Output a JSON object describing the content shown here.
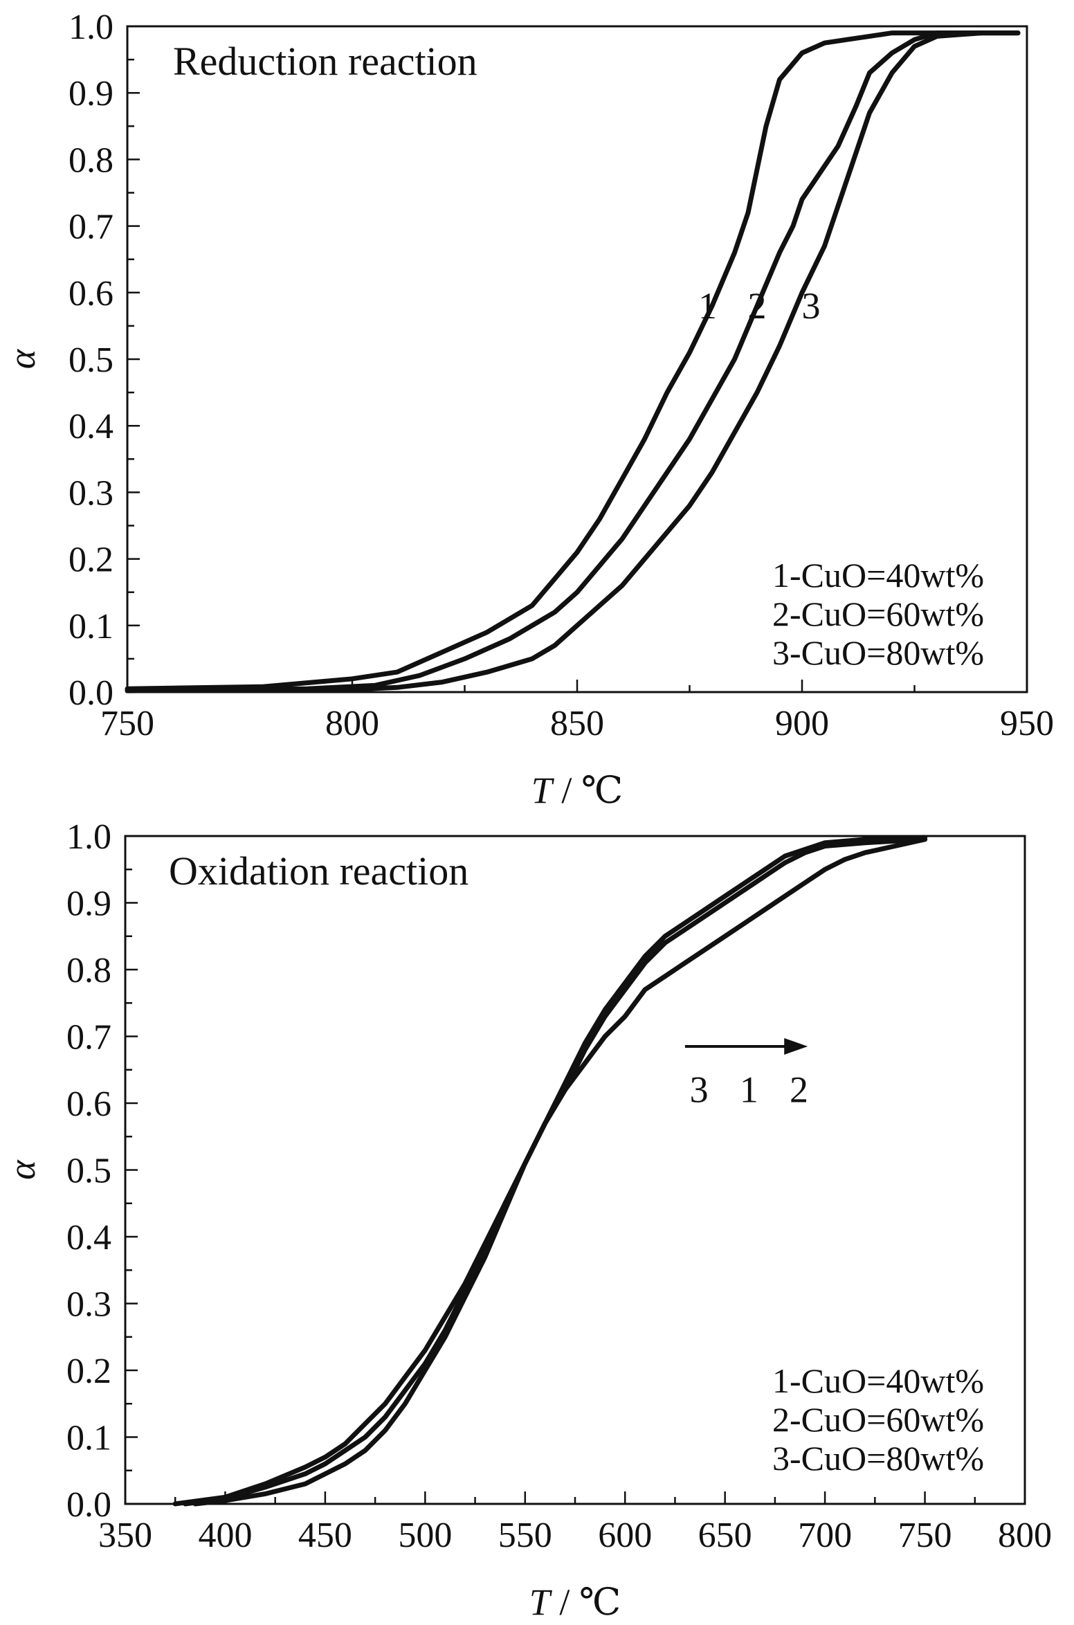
{
  "chart_data": [
    {
      "type": "line",
      "title": "Reduction reaction",
      "xlabel": "T / ℃",
      "xlabel_italic_part": "T",
      "xlabel_rest": " / ℃",
      "ylabel": "α",
      "xlim": [
        750,
        950
      ],
      "ylim": [
        0.0,
        1.0
      ],
      "x_ticks": [
        750,
        800,
        850,
        900,
        950
      ],
      "x_tick_labels": [
        "750",
        "800",
        "850",
        "900",
        "950"
      ],
      "y_ticks": [
        0.0,
        0.1,
        0.2,
        0.3,
        0.4,
        0.5,
        0.6,
        0.7,
        0.8,
        0.9,
        1.0
      ],
      "y_tick_labels": [
        "0.0",
        "0.1",
        "0.2",
        "0.3",
        "0.4",
        "0.5",
        "0.6",
        "0.7",
        "0.8",
        "0.9",
        "1.0"
      ],
      "grid": false,
      "legend_position": "bottom-right",
      "legend": [
        "1-CuO=40wt%",
        "2-CuO=60wt%",
        "3-CuO=80wt%"
      ],
      "curve_labels": [
        {
          "text": "1",
          "x": 879,
          "y": 0.58
        },
        {
          "text": "2",
          "x": 890,
          "y": 0.58
        },
        {
          "text": "3",
          "x": 902,
          "y": 0.58
        }
      ],
      "series": [
        {
          "name": "1",
          "x": [
            750,
            780,
            800,
            810,
            820,
            830,
            840,
            845,
            850,
            855,
            860,
            865,
            870,
            875,
            880,
            885,
            888,
            892,
            895,
            900,
            905,
            910,
            915,
            920,
            925,
            930,
            940,
            948
          ],
          "y": [
            0.005,
            0.008,
            0.02,
            0.03,
            0.06,
            0.09,
            0.13,
            0.17,
            0.21,
            0.26,
            0.32,
            0.38,
            0.45,
            0.51,
            0.58,
            0.66,
            0.72,
            0.85,
            0.92,
            0.96,
            0.975,
            0.98,
            0.985,
            0.99,
            0.99,
            0.99,
            0.99,
            0.99
          ]
        },
        {
          "name": "2",
          "x": [
            750,
            790,
            805,
            815,
            825,
            835,
            840,
            845,
            850,
            855,
            860,
            865,
            870,
            875,
            880,
            885,
            890,
            895,
            898,
            900,
            905,
            908,
            912,
            915,
            920,
            925,
            930,
            940,
            948
          ],
          "y": [
            0.003,
            0.005,
            0.01,
            0.025,
            0.05,
            0.08,
            0.1,
            0.12,
            0.15,
            0.19,
            0.23,
            0.28,
            0.33,
            0.38,
            0.44,
            0.5,
            0.58,
            0.66,
            0.7,
            0.74,
            0.79,
            0.82,
            0.88,
            0.93,
            0.96,
            0.98,
            0.99,
            0.99,
            0.99
          ]
        },
        {
          "name": "3",
          "x": [
            750,
            800,
            810,
            820,
            830,
            840,
            845,
            850,
            855,
            860,
            865,
            870,
            875,
            880,
            885,
            890,
            895,
            900,
            905,
            910,
            915,
            920,
            925,
            930,
            940,
            948
          ],
          "y": [
            0.002,
            0.004,
            0.007,
            0.015,
            0.03,
            0.05,
            0.07,
            0.1,
            0.13,
            0.16,
            0.2,
            0.24,
            0.28,
            0.33,
            0.39,
            0.45,
            0.52,
            0.6,
            0.67,
            0.77,
            0.87,
            0.93,
            0.97,
            0.985,
            0.99,
            0.99
          ]
        }
      ]
    },
    {
      "type": "line",
      "title": "Oxidation reaction",
      "xlabel": "T / ℃",
      "xlabel_italic_part": "T",
      "xlabel_rest": " / ℃",
      "ylabel": "α",
      "xlim": [
        350,
        800
      ],
      "ylim": [
        0.0,
        1.0
      ],
      "x_ticks": [
        350,
        400,
        450,
        500,
        550,
        600,
        650,
        700,
        750,
        800
      ],
      "x_tick_labels": [
        "350",
        "400",
        "450",
        "500",
        "550",
        "600",
        "650",
        "700",
        "750",
        "800"
      ],
      "y_ticks": [
        0.0,
        0.1,
        0.2,
        0.3,
        0.4,
        0.5,
        0.6,
        0.7,
        0.8,
        0.9,
        1.0
      ],
      "y_tick_labels": [
        "0.0",
        "0.1",
        "0.2",
        "0.3",
        "0.4",
        "0.5",
        "0.6",
        "0.7",
        "0.8",
        "0.9",
        "1.0"
      ],
      "grid": false,
      "legend_position": "bottom-right",
      "legend": [
        "1-CuO=40wt%",
        "2-CuO=60wt%",
        "3-CuO=80wt%"
      ],
      "arrow": {
        "x_start": 630,
        "x_end": 690,
        "y": 0.685
      },
      "curve_labels": [
        {
          "text": "3",
          "x": 637,
          "y": 0.62
        },
        {
          "text": "1",
          "x": 662,
          "y": 0.62
        },
        {
          "text": "2",
          "x": 687,
          "y": 0.62
        }
      ],
      "series": [
        {
          "name": "1",
          "x": [
            375,
            400,
            420,
            440,
            450,
            460,
            470,
            480,
            490,
            500,
            510,
            520,
            530,
            540,
            550,
            560,
            570,
            580,
            590,
            600,
            610,
            620,
            630,
            640,
            650,
            660,
            670,
            680,
            690,
            700,
            720,
            750
          ],
          "y": [
            0.0,
            0.01,
            0.03,
            0.055,
            0.07,
            0.09,
            0.12,
            0.15,
            0.19,
            0.23,
            0.28,
            0.33,
            0.39,
            0.45,
            0.51,
            0.57,
            0.62,
            0.68,
            0.73,
            0.77,
            0.81,
            0.84,
            0.86,
            0.88,
            0.9,
            0.92,
            0.94,
            0.96,
            0.975,
            0.985,
            0.99,
            0.995
          ]
        },
        {
          "name": "2",
          "x": [
            380,
            400,
            420,
            440,
            450,
            460,
            470,
            480,
            490,
            500,
            510,
            520,
            530,
            540,
            550,
            560,
            570,
            580,
            590,
            600,
            610,
            620,
            630,
            640,
            650,
            660,
            670,
            680,
            690,
            700,
            710,
            720,
            735,
            750
          ],
          "y": [
            0.0,
            0.008,
            0.025,
            0.045,
            0.06,
            0.08,
            0.1,
            0.13,
            0.17,
            0.21,
            0.26,
            0.32,
            0.38,
            0.45,
            0.51,
            0.57,
            0.62,
            0.66,
            0.7,
            0.73,
            0.77,
            0.79,
            0.81,
            0.83,
            0.85,
            0.87,
            0.89,
            0.91,
            0.93,
            0.95,
            0.965,
            0.975,
            0.985,
            0.995
          ]
        },
        {
          "name": "3",
          "x": [
            385,
            400,
            420,
            440,
            450,
            460,
            470,
            480,
            490,
            500,
            510,
            520,
            530,
            540,
            550,
            560,
            570,
            580,
            590,
            600,
            610,
            620,
            630,
            640,
            650,
            660,
            670,
            680,
            690,
            700,
            720,
            750
          ],
          "y": [
            0.0,
            0.005,
            0.015,
            0.03,
            0.045,
            0.06,
            0.08,
            0.11,
            0.15,
            0.2,
            0.25,
            0.31,
            0.37,
            0.44,
            0.51,
            0.57,
            0.63,
            0.69,
            0.74,
            0.78,
            0.82,
            0.85,
            0.87,
            0.89,
            0.91,
            0.93,
            0.95,
            0.97,
            0.98,
            0.99,
            0.995,
            0.998
          ]
        }
      ]
    }
  ]
}
